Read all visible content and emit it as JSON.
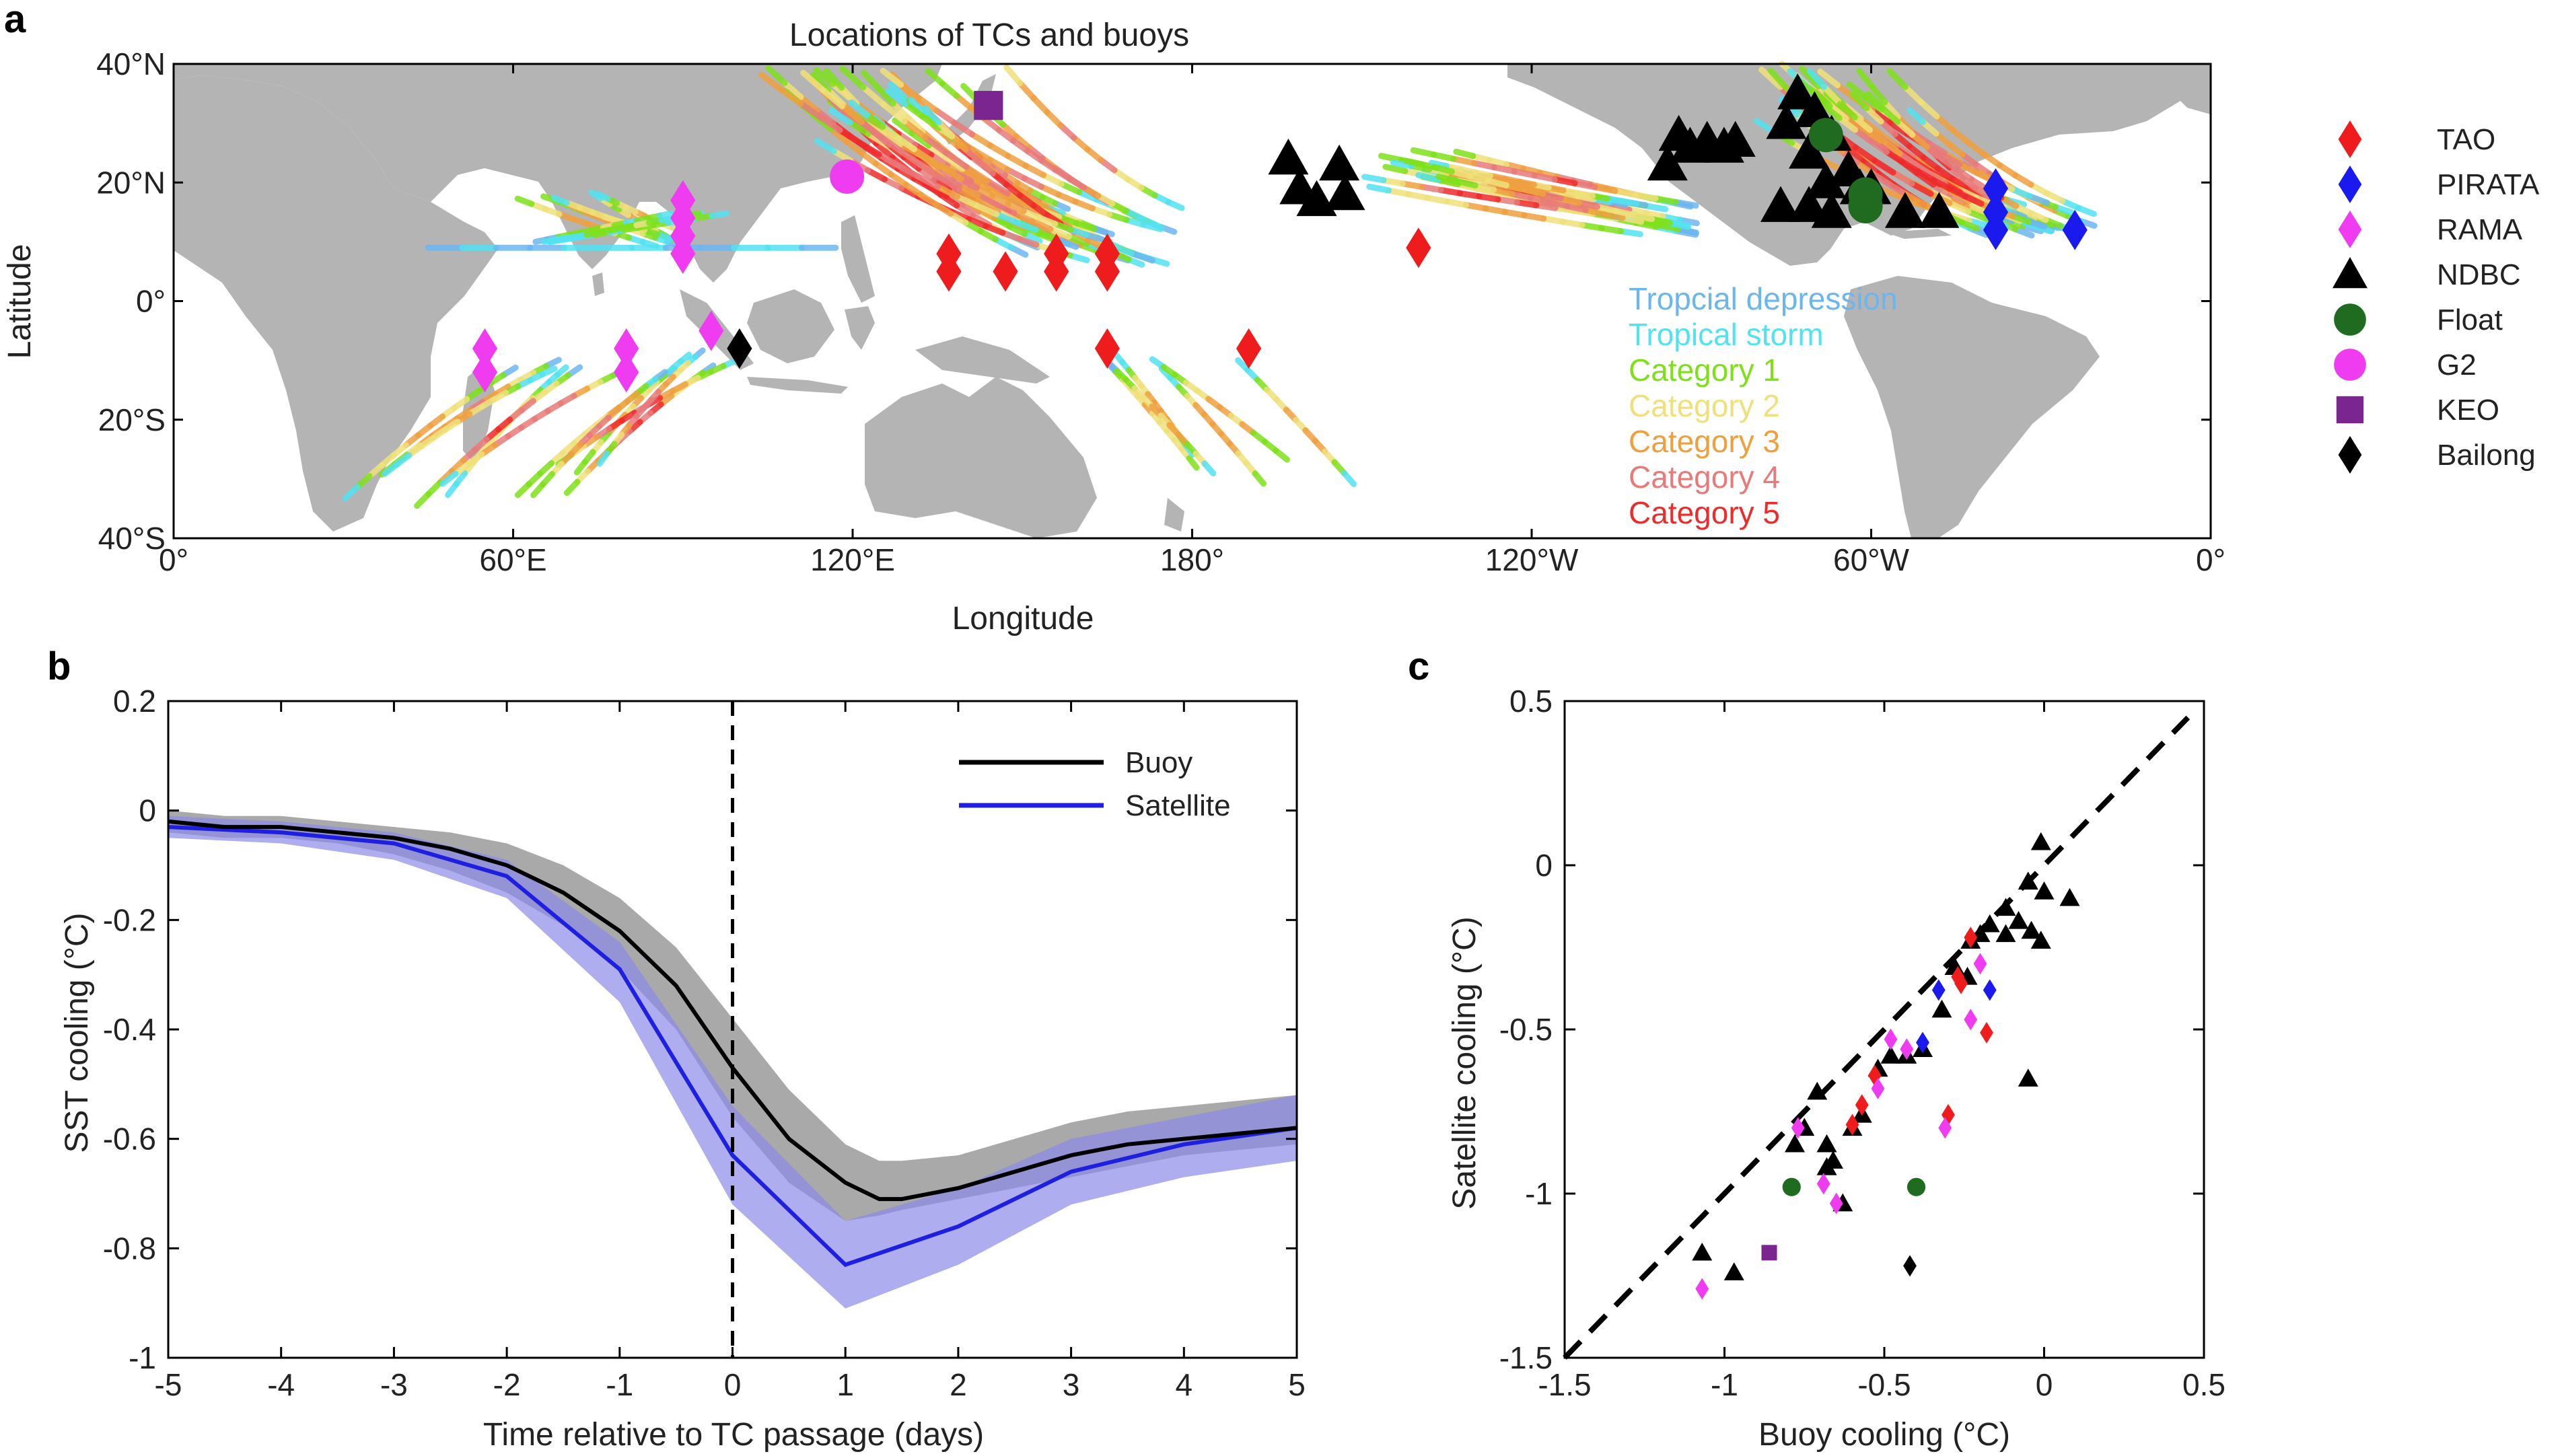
{
  "panel_letters": {
    "a": "a",
    "b": "b",
    "c": "c"
  },
  "colors": {
    "land": "#b4b4b4",
    "TAO": "#ee1c1c",
    "PIRATA": "#1a1aee",
    "RAMA": "#f03cf0",
    "NDBC": "#000000",
    "Float": "#1f6b1f",
    "G2": "#f03cf0",
    "KEO": "#7a2590",
    "Bailong": "#000000",
    "buoy_line": "#000000",
    "buoy_band": "#9a9a9a",
    "sat_line": "#1f1fe0",
    "sat_band": "#8a8ae8",
    "cat_td": "#6cb6ee",
    "cat_ts": "#52e2f0",
    "cat_1": "#7fe01a",
    "cat_2": "#eee07a",
    "cat_3": "#eea040",
    "cat_4": "#e87a7a",
    "cat_5": "#ee2a2a"
  },
  "chart_data": [
    {
      "type": "scatter",
      "panel": "a",
      "title": "Locations of TCs and buoys",
      "xlabel": "Longitude",
      "ylabel": "Latitude",
      "xticks": [
        "0°",
        "60°E",
        "120°E",
        "180°",
        "120°W",
        "60°W",
        "0°"
      ],
      "yticks": [
        "40°N",
        "20°N",
        "0°",
        "20°S",
        "40°S"
      ],
      "xlim": [
        0,
        360
      ],
      "ylim": [
        -40,
        40
      ],
      "track_legend": [
        {
          "label": "Tropcial depression",
          "color_key": "cat_td"
        },
        {
          "label": "Tropical storm",
          "color_key": "cat_ts"
        },
        {
          "label": "Category 1",
          "color_key": "cat_1"
        },
        {
          "label": "Category 2",
          "color_key": "cat_2"
        },
        {
          "label": "Category 3",
          "color_key": "cat_3"
        },
        {
          "label": "Category 4",
          "color_key": "cat_4"
        },
        {
          "label": "Category 5",
          "color_key": "cat_5"
        }
      ],
      "buoy_legend": [
        {
          "label": "TAO",
          "marker": "diamond",
          "color_key": "TAO"
        },
        {
          "label": "PIRATA",
          "marker": "diamond",
          "color_key": "PIRATA"
        },
        {
          "label": "RAMA",
          "marker": "diamond",
          "color_key": "RAMA"
        },
        {
          "label": "NDBC",
          "marker": "triangle",
          "color_key": "NDBC"
        },
        {
          "label": "Float",
          "marker": "circle",
          "color_key": "Float"
        },
        {
          "label": "G2",
          "marker": "circle",
          "color_key": "G2"
        },
        {
          "label": "KEO",
          "marker": "square",
          "color_key": "KEO"
        },
        {
          "label": "Bailong",
          "marker": "diamond",
          "color_key": "Bailong"
        }
      ],
      "buoys": [
        {
          "g": "TAO",
          "lon": 137,
          "lat": 5
        },
        {
          "g": "TAO",
          "lon": 137,
          "lat": 8
        },
        {
          "g": "TAO",
          "lon": 147,
          "lat": 5
        },
        {
          "g": "TAO",
          "lon": 156,
          "lat": 5
        },
        {
          "g": "TAO",
          "lon": 156,
          "lat": 8
        },
        {
          "g": "TAO",
          "lon": 165,
          "lat": 5
        },
        {
          "g": "TAO",
          "lon": 165,
          "lat": 8
        },
        {
          "g": "TAO",
          "lon": 220,
          "lat": 9
        },
        {
          "g": "TAO",
          "lon": 165,
          "lat": -8
        },
        {
          "g": "TAO",
          "lon": 190,
          "lat": -8
        },
        {
          "g": "PIRATA",
          "lon": 322,
          "lat": 19
        },
        {
          "g": "PIRATA",
          "lon": 322,
          "lat": 15
        },
        {
          "g": "PIRATA",
          "lon": 322,
          "lat": 12
        },
        {
          "g": "PIRATA",
          "lon": 336,
          "lat": 12
        },
        {
          "g": "RAMA",
          "lon": 90,
          "lat": 17
        },
        {
          "g": "RAMA",
          "lon": 90,
          "lat": 14
        },
        {
          "g": "RAMA",
          "lon": 90,
          "lat": 11
        },
        {
          "g": "RAMA",
          "lon": 90,
          "lat": 8
        },
        {
          "g": "RAMA",
          "lon": 95,
          "lat": -5
        },
        {
          "g": "RAMA",
          "lon": 55,
          "lat": -8
        },
        {
          "g": "RAMA",
          "lon": 55,
          "lat": -12
        },
        {
          "g": "RAMA",
          "lon": 80,
          "lat": -8
        },
        {
          "g": "RAMA",
          "lon": 80,
          "lat": -12
        },
        {
          "g": "NDBC",
          "lon": 197,
          "lat": 24
        },
        {
          "g": "NDBC",
          "lon": 206,
          "lat": 23
        },
        {
          "g": "NDBC",
          "lon": 199,
          "lat": 19
        },
        {
          "g": "NDBC",
          "lon": 202,
          "lat": 17
        },
        {
          "g": "NDBC",
          "lon": 207,
          "lat": 18
        },
        {
          "g": "NDBC",
          "lon": 266,
          "lat": 28
        },
        {
          "g": "NDBC",
          "lon": 268,
          "lat": 26
        },
        {
          "g": "NDBC",
          "lon": 271,
          "lat": 27
        },
        {
          "g": "NDBC",
          "lon": 274,
          "lat": 26
        },
        {
          "g": "NDBC",
          "lon": 264,
          "lat": 23
        },
        {
          "g": "NDBC",
          "lon": 276,
          "lat": 27
        },
        {
          "g": "NDBC",
          "lon": 287,
          "lat": 35
        },
        {
          "g": "NDBC",
          "lon": 290,
          "lat": 32
        },
        {
          "g": "NDBC",
          "lon": 285,
          "lat": 30
        },
        {
          "g": "NDBC",
          "lon": 293,
          "lat": 28
        },
        {
          "g": "NDBC",
          "lon": 289,
          "lat": 25
        },
        {
          "g": "NDBC",
          "lon": 296,
          "lat": 22
        },
        {
          "g": "NDBC",
          "lon": 292,
          "lat": 20
        },
        {
          "g": "NDBC",
          "lon": 298,
          "lat": 19
        },
        {
          "g": "NDBC",
          "lon": 284,
          "lat": 16
        },
        {
          "g": "NDBC",
          "lon": 289,
          "lat": 16
        },
        {
          "g": "NDBC",
          "lon": 293,
          "lat": 15
        },
        {
          "g": "NDBC",
          "lon": 306,
          "lat": 15
        },
        {
          "g": "NDBC",
          "lon": 312,
          "lat": 15
        },
        {
          "g": "NDBC",
          "lon": 300,
          "lat": 19
        },
        {
          "g": "Float",
          "lon": 292,
          "lat": 28
        },
        {
          "g": "Float",
          "lon": 299,
          "lat": 18
        },
        {
          "g": "Float",
          "lon": 299,
          "lat": 16
        },
        {
          "g": "G2",
          "lon": 119,
          "lat": 21
        },
        {
          "g": "KEO",
          "lon": 144,
          "lat": 33
        },
        {
          "g": "Bailong",
          "lon": 100,
          "lat": -8
        }
      ]
    },
    {
      "type": "line",
      "panel": "b",
      "xlabel": "Time relative to TC passage (days)",
      "ylabel": "SST cooling (°C)",
      "xlim": [
        -5,
        5
      ],
      "ylim": [
        -1,
        0.2
      ],
      "xticks": [
        "-5",
        "-4",
        "-3",
        "-2",
        "-1",
        "0",
        "1",
        "2",
        "3",
        "4",
        "5"
      ],
      "yticks": [
        "0.2",
        "0",
        "-0.2",
        "-0.4",
        "-0.6",
        "-0.8",
        "-1"
      ],
      "series": [
        {
          "name": "Buoy",
          "color_key": "buoy_line",
          "x": [
            -5,
            -4.5,
            -4,
            -3.5,
            -3,
            -2.5,
            -2,
            -1.5,
            -1,
            -0.5,
            0,
            0.5,
            1,
            1.3,
            1.5,
            2,
            2.5,
            3,
            3.5,
            4,
            4.5,
            5
          ],
          "y": [
            -0.02,
            -0.03,
            -0.03,
            -0.04,
            -0.05,
            -0.07,
            -0.1,
            -0.15,
            -0.22,
            -0.32,
            -0.47,
            -0.6,
            -0.68,
            -0.71,
            -0.71,
            -0.69,
            -0.66,
            -0.63,
            -0.61,
            -0.6,
            -0.59,
            -0.58
          ],
          "band_lo": [
            -0.04,
            -0.05,
            -0.05,
            -0.06,
            -0.08,
            -0.11,
            -0.15,
            -0.21,
            -0.29,
            -0.4,
            -0.56,
            -0.68,
            -0.75,
            -0.74,
            -0.73,
            -0.71,
            -0.69,
            -0.67,
            -0.65,
            -0.63,
            -0.62,
            -0.61
          ],
          "band_hi": [
            0.0,
            -0.01,
            -0.01,
            -0.02,
            -0.03,
            -0.04,
            -0.06,
            -0.1,
            -0.16,
            -0.25,
            -0.38,
            -0.51,
            -0.61,
            -0.64,
            -0.64,
            -0.63,
            -0.6,
            -0.57,
            -0.55,
            -0.54,
            -0.53,
            -0.52
          ]
        },
        {
          "name": "Satellite",
          "color_key": "sat_line",
          "x": [
            -5,
            -4,
            -3,
            -2,
            -1,
            0,
            1,
            2,
            3,
            4,
            5
          ],
          "y": [
            -0.03,
            -0.04,
            -0.06,
            -0.12,
            -0.29,
            -0.63,
            -0.83,
            -0.76,
            -0.66,
            -0.61,
            -0.58
          ],
          "band_lo": [
            -0.05,
            -0.06,
            -0.09,
            -0.16,
            -0.35,
            -0.72,
            -0.91,
            -0.83,
            -0.72,
            -0.67,
            -0.64
          ],
          "band_hi": [
            -0.01,
            -0.02,
            -0.04,
            -0.09,
            -0.24,
            -0.54,
            -0.75,
            -0.69,
            -0.6,
            -0.56,
            -0.52
          ]
        }
      ],
      "vline_x": 0
    },
    {
      "type": "scatter",
      "panel": "c",
      "xlabel": "Buoy cooling (°C)",
      "ylabel": "Satellite cooling (°C)",
      "xlim": [
        -1.5,
        0.5
      ],
      "ylim": [
        -1.5,
        0.5
      ],
      "xticks": [
        "-1.5",
        "-1",
        "-0.5",
        "0",
        "0.5"
      ],
      "yticks": [
        "0.5",
        "0",
        "-0.5",
        "-1",
        "-1.5"
      ],
      "one_to_one_line": true,
      "points": [
        {
          "g": "NDBC",
          "x": -0.01,
          "y": 0.07
        },
        {
          "g": "NDBC",
          "x": -0.05,
          "y": -0.05
        },
        {
          "g": "NDBC",
          "x": 0.0,
          "y": -0.08
        },
        {
          "g": "NDBC",
          "x": 0.08,
          "y": -0.1
        },
        {
          "g": "NDBC",
          "x": -0.12,
          "y": -0.13
        },
        {
          "g": "NDBC",
          "x": -0.17,
          "y": -0.18
        },
        {
          "g": "NDBC",
          "x": -0.08,
          "y": -0.17
        },
        {
          "g": "NDBC",
          "x": -0.04,
          "y": -0.2
        },
        {
          "g": "NDBC",
          "x": -0.23,
          "y": -0.23
        },
        {
          "g": "NDBC",
          "x": -0.01,
          "y": -0.23
        },
        {
          "g": "NDBC",
          "x": -0.12,
          "y": -0.21
        },
        {
          "g": "NDBC",
          "x": -0.2,
          "y": -0.21
        },
        {
          "g": "NDBC",
          "x": -0.28,
          "y": -0.31
        },
        {
          "g": "NDBC",
          "x": -0.24,
          "y": -0.34
        },
        {
          "g": "NDBC",
          "x": -0.32,
          "y": -0.44
        },
        {
          "g": "NDBC",
          "x": -0.38,
          "y": -0.56
        },
        {
          "g": "NDBC",
          "x": -0.43,
          "y": -0.58
        },
        {
          "g": "NDBC",
          "x": -0.48,
          "y": -0.58
        },
        {
          "g": "NDBC",
          "x": -0.52,
          "y": -0.62
        },
        {
          "g": "NDBC",
          "x": -0.05,
          "y": -0.65
        },
        {
          "g": "NDBC",
          "x": -0.71,
          "y": -0.69
        },
        {
          "g": "NDBC",
          "x": -0.57,
          "y": -0.76
        },
        {
          "g": "NDBC",
          "x": -0.6,
          "y": -0.8
        },
        {
          "g": "NDBC",
          "x": -0.75,
          "y": -0.8
        },
        {
          "g": "NDBC",
          "x": -0.78,
          "y": -0.85
        },
        {
          "g": "NDBC",
          "x": -0.68,
          "y": -0.85
        },
        {
          "g": "NDBC",
          "x": -0.66,
          "y": -0.9
        },
        {
          "g": "NDBC",
          "x": -0.68,
          "y": -0.92
        },
        {
          "g": "NDBC",
          "x": -0.63,
          "y": -1.03
        },
        {
          "g": "NDBC",
          "x": -1.07,
          "y": -1.18
        },
        {
          "g": "NDBC",
          "x": -0.97,
          "y": -1.24
        },
        {
          "g": "TAO",
          "x": -0.23,
          "y": -0.22
        },
        {
          "g": "TAO",
          "x": -0.27,
          "y": -0.34
        },
        {
          "g": "TAO",
          "x": -0.26,
          "y": -0.36
        },
        {
          "g": "TAO",
          "x": -0.18,
          "y": -0.51
        },
        {
          "g": "TAO",
          "x": -0.53,
          "y": -0.64
        },
        {
          "g": "TAO",
          "x": -0.57,
          "y": -0.73
        },
        {
          "g": "TAO",
          "x": -0.3,
          "y": -0.76
        },
        {
          "g": "TAO",
          "x": -0.6,
          "y": -0.79
        },
        {
          "g": "PIRATA",
          "x": -0.33,
          "y": -0.38
        },
        {
          "g": "PIRATA",
          "x": -0.17,
          "y": -0.38
        },
        {
          "g": "PIRATA",
          "x": -0.38,
          "y": -0.54
        },
        {
          "g": "RAMA",
          "x": -0.2,
          "y": -0.3
        },
        {
          "g": "RAMA",
          "x": -0.23,
          "y": -0.47
        },
        {
          "g": "RAMA",
          "x": -0.48,
          "y": -0.53
        },
        {
          "g": "RAMA",
          "x": -0.43,
          "y": -0.56
        },
        {
          "g": "RAMA",
          "x": -0.52,
          "y": -0.68
        },
        {
          "g": "RAMA",
          "x": -0.31,
          "y": -0.8
        },
        {
          "g": "RAMA",
          "x": -0.77,
          "y": -0.8
        },
        {
          "g": "RAMA",
          "x": -0.69,
          "y": -0.97
        },
        {
          "g": "RAMA",
          "x": -0.65,
          "y": -1.03
        },
        {
          "g": "RAMA",
          "x": -1.07,
          "y": -1.29
        },
        {
          "g": "Float",
          "x": -0.79,
          "y": -0.98
        },
        {
          "g": "Float",
          "x": -0.4,
          "y": -0.98
        },
        {
          "g": "KEO",
          "x": -0.86,
          "y": -1.18
        },
        {
          "g": "Bailong",
          "x": -0.42,
          "y": -1.22
        }
      ]
    }
  ]
}
